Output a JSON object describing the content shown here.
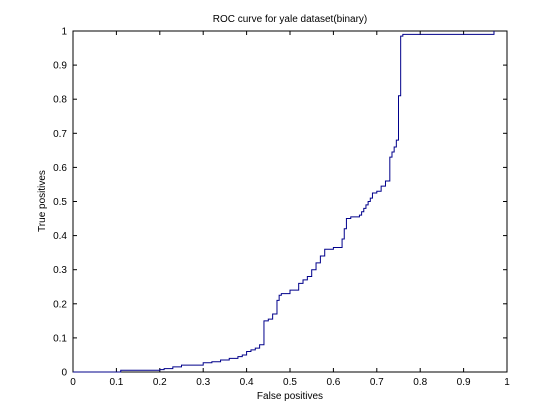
{
  "chart_data": {
    "type": "line",
    "title": "ROC curve for yale dataset(binary)",
    "xlabel": "False positives",
    "ylabel": "True positives",
    "xlim": [
      0,
      1
    ],
    "ylim": [
      0,
      1
    ],
    "xticks": [
      "0",
      "0.1",
      "0.2",
      "0.3",
      "0.4",
      "0.5",
      "0.6",
      "0.7",
      "0.8",
      "0.9",
      "1"
    ],
    "yticks": [
      "0",
      "0.1",
      "0.2",
      "0.3",
      "0.4",
      "0.5",
      "0.6",
      "0.7",
      "0.8",
      "0.9",
      "1"
    ],
    "grid": false,
    "legend": "none",
    "line_color": "#00008b",
    "series": [
      {
        "step": "post",
        "x": [
          0,
          0.11,
          0.2,
          0.21,
          0.23,
          0.25,
          0.27,
          0.3,
          0.32,
          0.34,
          0.36,
          0.38,
          0.39,
          0.4,
          0.41,
          0.42,
          0.43,
          0.44,
          0.45,
          0.46,
          0.47,
          0.475,
          0.48,
          0.49,
          0.5,
          0.52,
          0.53,
          0.54,
          0.55,
          0.56,
          0.57,
          0.58,
          0.6,
          0.62,
          0.625,
          0.63,
          0.64,
          0.66,
          0.665,
          0.67,
          0.675,
          0.68,
          0.685,
          0.69,
          0.7,
          0.71,
          0.72,
          0.73,
          0.735,
          0.74,
          0.745,
          0.75,
          0.755,
          0.76,
          0.97
        ],
        "y": [
          0,
          0.005,
          0.007,
          0.01,
          0.015,
          0.02,
          0.02,
          0.027,
          0.03,
          0.035,
          0.04,
          0.045,
          0.05,
          0.06,
          0.065,
          0.07,
          0.08,
          0.15,
          0.155,
          0.17,
          0.21,
          0.225,
          0.23,
          0.23,
          0.24,
          0.26,
          0.27,
          0.28,
          0.3,
          0.32,
          0.34,
          0.36,
          0.365,
          0.39,
          0.42,
          0.45,
          0.455,
          0.46,
          0.47,
          0.48,
          0.49,
          0.5,
          0.51,
          0.525,
          0.53,
          0.545,
          0.56,
          0.63,
          0.645,
          0.66,
          0.68,
          0.81,
          0.985,
          0.99,
          1.0
        ]
      }
    ]
  }
}
